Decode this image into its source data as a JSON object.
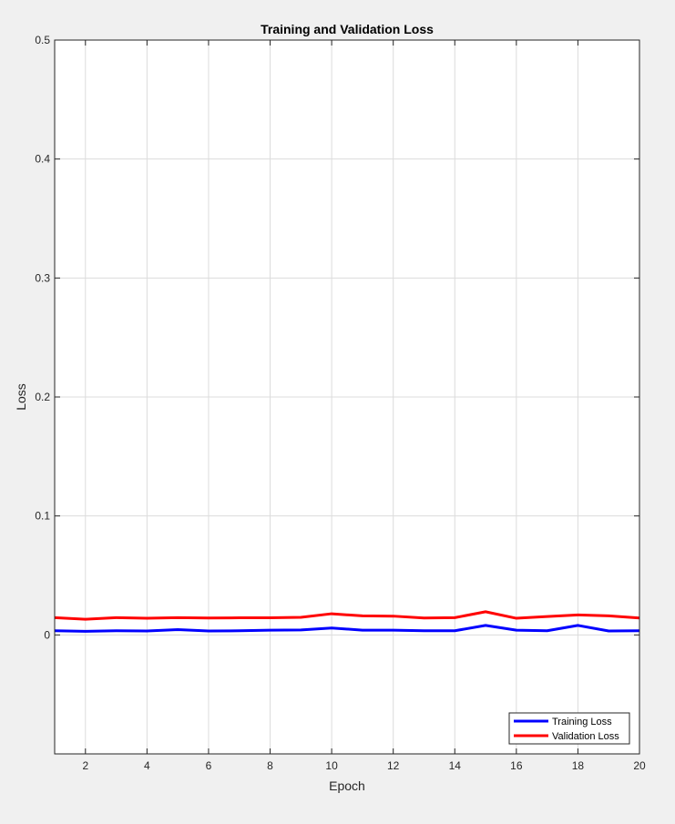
{
  "chart_data": {
    "type": "line",
    "title": "Training and Validation Loss",
    "xlabel": "Epoch",
    "ylabel": "Loss",
    "xlim": [
      1,
      20
    ],
    "ylim": [
      -0.1,
      0.5
    ],
    "xticks": [
      2,
      4,
      6,
      8,
      10,
      12,
      14,
      16,
      18,
      20
    ],
    "xtick_labels": [
      "2",
      "4",
      "6",
      "8",
      "10",
      "12",
      "14",
      "16",
      "18",
      "20"
    ],
    "yticks": [
      0,
      0.1,
      0.2,
      0.3,
      0.4,
      0.5
    ],
    "ytick_labels": [
      "0",
      "0.1",
      "0.2",
      "0.3",
      "0.4",
      "0.5"
    ],
    "grid": true,
    "legend_location": "bottom-right",
    "x": [
      1,
      2,
      3,
      4,
      5,
      6,
      7,
      8,
      9,
      10,
      11,
      12,
      13,
      14,
      15,
      16,
      17,
      18,
      19,
      20
    ],
    "series": [
      {
        "name": "Training Loss",
        "color": "#0000ff",
        "values": [
          0.0035,
          0.003,
          0.0035,
          0.0033,
          0.0045,
          0.0033,
          0.0035,
          0.004,
          0.0042,
          0.0058,
          0.004,
          0.004,
          0.0035,
          0.0035,
          0.008,
          0.004,
          0.0035,
          0.008,
          0.0033,
          0.0035
        ]
      },
      {
        "name": "Validation Loss",
        "color": "#ff0000",
        "values": [
          0.0145,
          0.0132,
          0.0145,
          0.014,
          0.0145,
          0.0142,
          0.0144,
          0.0144,
          0.0148,
          0.0178,
          0.016,
          0.0158,
          0.0142,
          0.0145,
          0.0195,
          0.014,
          0.0155,
          0.0168,
          0.016,
          0.0142
        ]
      }
    ]
  }
}
